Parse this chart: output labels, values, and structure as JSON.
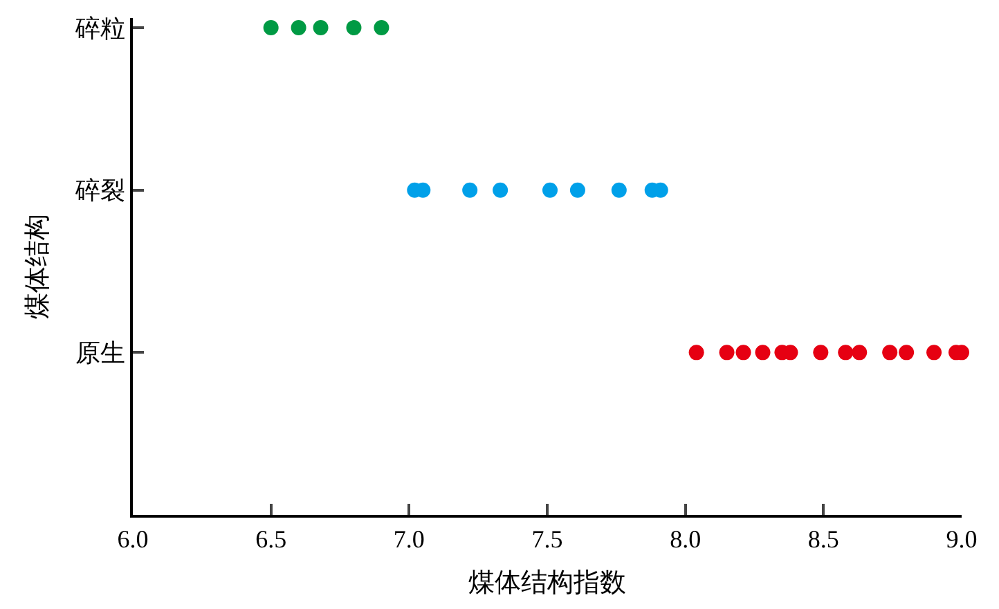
{
  "chart_data": {
    "type": "scatter",
    "orientation": "horizontal",
    "xlabel": "煤体结构指数",
    "ylabel": "煤体结构",
    "categories": [
      "碎粒",
      "碎裂",
      "原生"
    ],
    "xlim": [
      6.0,
      9.0
    ],
    "xticks": [
      {
        "value": 6.0,
        "label": "6.0"
      },
      {
        "value": 6.5,
        "label": "6.5"
      },
      {
        "value": 7.0,
        "label": "7.0"
      },
      {
        "value": 7.5,
        "label": "7.5"
      },
      {
        "value": 8.0,
        "label": "8.0"
      },
      {
        "value": 8.5,
        "label": "8.5"
      },
      {
        "value": 9.0,
        "label": "9.0"
      }
    ],
    "legend": false,
    "marker": "circle",
    "series": [
      {
        "colors": [
          "#009a44",
          "#00a0e9",
          "#e60012"
        ],
        "values": [
          6.5,
          7.02,
          8.04
        ]
      },
      {
        "colors": [
          "#009a44",
          "#00a0e9",
          "#e60012"
        ],
        "values": [
          6.6,
          7.05,
          8.15
        ]
      },
      {
        "colors": [
          "#009a44",
          "#00a0e9",
          "#e60012"
        ],
        "values": [
          6.68,
          7.22,
          8.21
        ]
      },
      {
        "colors": [
          "#009a44",
          "#00a0e9",
          "#e60012"
        ],
        "values": [
          6.8,
          7.33,
          8.28
        ]
      },
      {
        "colors": [
          "#009a44",
          "#00a0e9",
          "#e60012"
        ],
        "values": [
          6.9,
          7.51,
          8.35
        ]
      },
      {
        "colors": [
          "#009a44",
          "#00a0e9",
          "#e60012"
        ],
        "values": [
          null,
          7.61,
          8.38
        ]
      },
      {
        "colors": [
          "#009a44",
          "#00a0e9",
          "#e60012"
        ],
        "values": [
          null,
          7.76,
          8.49
        ]
      },
      {
        "colors": [
          "#009a44",
          "#00a0e9",
          "#e60012"
        ],
        "values": [
          null,
          7.88,
          8.58
        ]
      },
      {
        "colors": [
          "#009a44",
          "#00a0e9",
          "#e60012"
        ],
        "values": [
          null,
          7.91,
          8.63
        ]
      },
      {
        "colors": [
          "#009a44",
          "#00a0e9",
          "#e60012"
        ],
        "values": [
          null,
          null,
          8.74
        ]
      },
      {
        "colors": [
          "#009a44",
          "#00a0e9",
          "#e60012"
        ],
        "values": [
          null,
          null,
          8.8
        ]
      },
      {
        "colors": [
          "#009a44",
          "#00a0e9",
          "#e60012"
        ],
        "values": [
          null,
          null,
          8.9
        ]
      },
      {
        "colors": [
          "#009a44",
          "#00a0e9",
          "#e60012"
        ],
        "values": [
          null,
          null,
          8.98
        ]
      },
      {
        "colors": [
          "#009a44",
          "#00a0e9",
          "#e60012"
        ],
        "values": [
          null,
          null,
          9.0
        ]
      }
    ]
  }
}
